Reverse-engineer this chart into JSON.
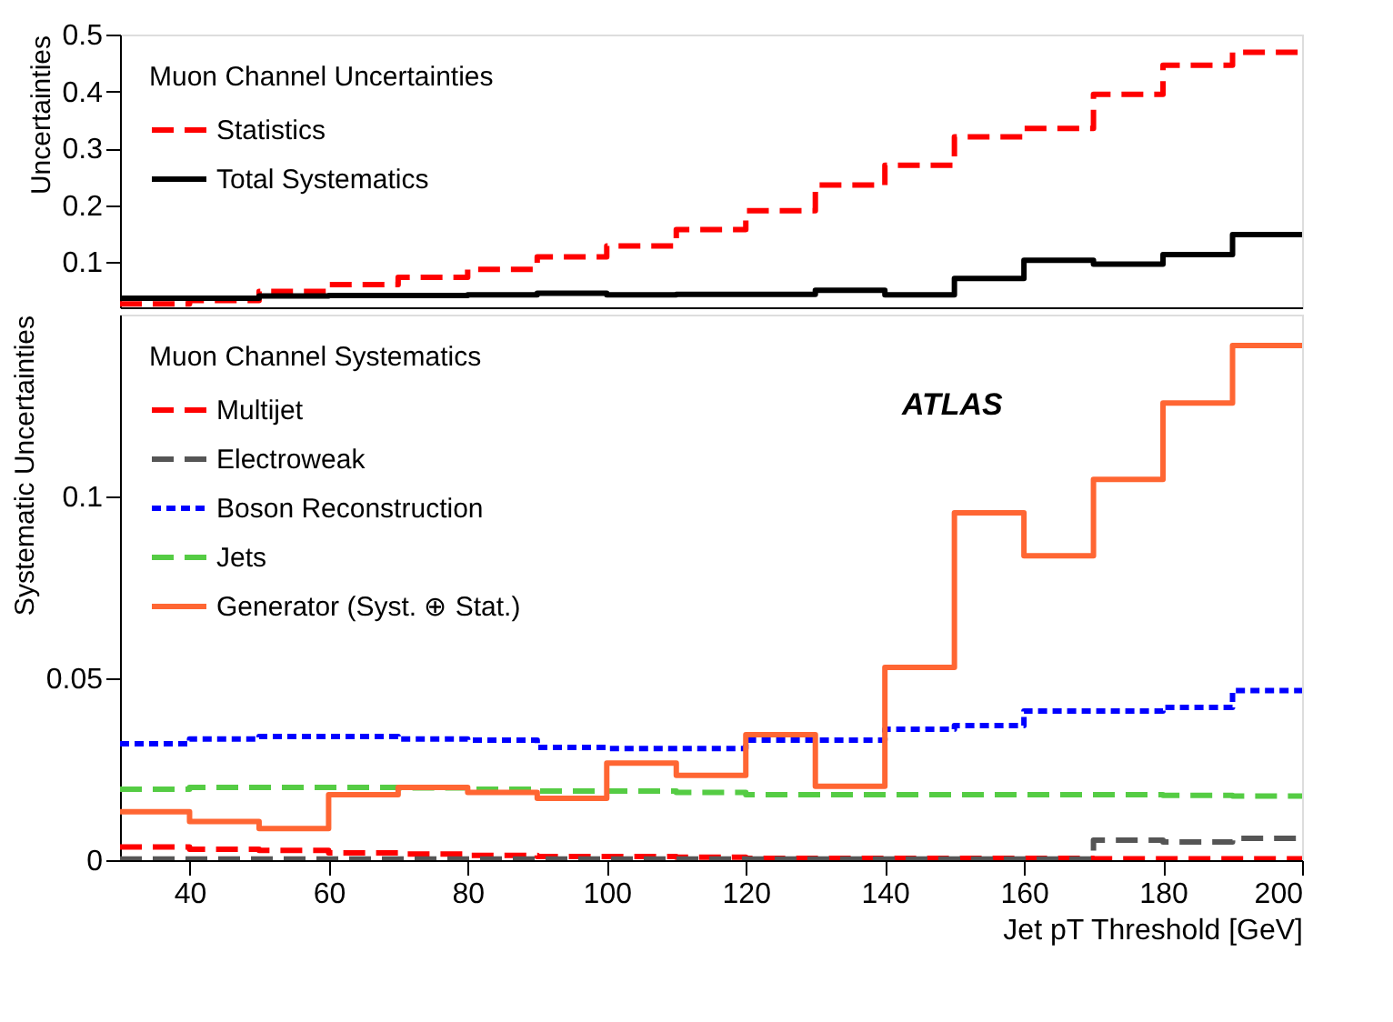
{
  "chart_data": [
    {
      "type": "histogram",
      "ylabel": "Uncertainties",
      "legend_title": "Muon Channel Uncertainties",
      "legend": "top left",
      "grid": false,
      "tick_labels": "y",
      "bins": [
        30,
        40,
        50,
        60,
        70,
        80,
        90,
        100,
        110,
        120,
        130,
        140,
        150,
        160,
        170,
        180,
        190,
        200
      ],
      "xlim": [
        30,
        200
      ],
      "ylim": [
        0.02,
        0.5
      ],
      "yticks": [
        0.1,
        0.2,
        0.3,
        0.4,
        0.5
      ],
      "series": [
        {
          "name": "Statistics",
          "color": "#ff0000",
          "line_style": "dashed",
          "values": [
            0.026,
            0.032,
            0.048,
            0.06,
            0.073,
            0.087,
            0.109,
            0.128,
            0.157,
            0.19,
            0.235,
            0.27,
            0.32,
            0.335,
            0.395,
            0.446,
            0.469
          ]
        },
        {
          "name": "Total Systematics",
          "color": "#000000",
          "line_style": "solid",
          "values": [
            0.036,
            0.036,
            0.04,
            0.041,
            0.041,
            0.042,
            0.045,
            0.042,
            0.043,
            0.043,
            0.05,
            0.042,
            0.071,
            0.103,
            0.096,
            0.113,
            0.148
          ]
        }
      ]
    },
    {
      "type": "histogram",
      "ylabel": "Systematic Uncertainties",
      "xlabel": "Jet pT Threshold [GeV]",
      "legend_title": "Muon Channel Systematics",
      "legend": "top left",
      "grid": false,
      "annotations": [
        "ATLAS"
      ],
      "bins": [
        30,
        40,
        50,
        60,
        70,
        80,
        90,
        100,
        110,
        120,
        130,
        140,
        150,
        160,
        170,
        180,
        190,
        200
      ],
      "xlim": [
        30,
        200
      ],
      "xticks": [
        40,
        60,
        80,
        100,
        120,
        140,
        160,
        180,
        200
      ],
      "ylim": [
        0,
        0.15
      ],
      "yticks": [
        0,
        0.05,
        0.1
      ],
      "series": [
        {
          "name": "Multijet",
          "color": "#ff0000",
          "line_style": "dashed",
          "values": [
            0.0036,
            0.003,
            0.0027,
            0.002,
            0.0017,
            0.0013,
            0.001,
            0.001,
            0.0008,
            0.0005,
            0.0005,
            0.0005,
            0.0005,
            0.0005,
            0.0004,
            0.0004,
            0.0004
          ]
        },
        {
          "name": "Electroweak",
          "color": "#555555",
          "line_style": "dashed",
          "values": [
            0.0003,
            0.0003,
            0.0003,
            0.0003,
            0.0003,
            0.0003,
            0.0003,
            0.0003,
            0.0003,
            0.0003,
            0.0003,
            0.0003,
            0.0003,
            0.0003,
            0.0055,
            0.005,
            0.006
          ]
        },
        {
          "name": "Boson Reconstruction",
          "color": "#0000ff",
          "line_style": "dotted",
          "values": [
            0.032,
            0.0333,
            0.034,
            0.034,
            0.0333,
            0.033,
            0.031,
            0.0307,
            0.0307,
            0.033,
            0.033,
            0.036,
            0.037,
            0.041,
            0.041,
            0.042,
            0.0466
          ]
        },
        {
          "name": "Jets",
          "color": "#55cc44",
          "line_style": "dashed",
          "values": [
            0.0195,
            0.02,
            0.02,
            0.02,
            0.0199,
            0.0195,
            0.019,
            0.019,
            0.0186,
            0.018,
            0.018,
            0.018,
            0.018,
            0.018,
            0.018,
            0.0178,
            0.0176
          ]
        },
        {
          "name": "Generator (Syst. ⊕ Stat.)",
          "color": "#ff6633",
          "line_style": "solid",
          "values": [
            0.0133,
            0.0106,
            0.0087,
            0.018,
            0.02,
            0.0186,
            0.017,
            0.0267,
            0.0233,
            0.0345,
            0.0203,
            0.053,
            0.0955,
            0.0837,
            0.1047,
            0.1257,
            0.1415
          ]
        }
      ]
    }
  ]
}
